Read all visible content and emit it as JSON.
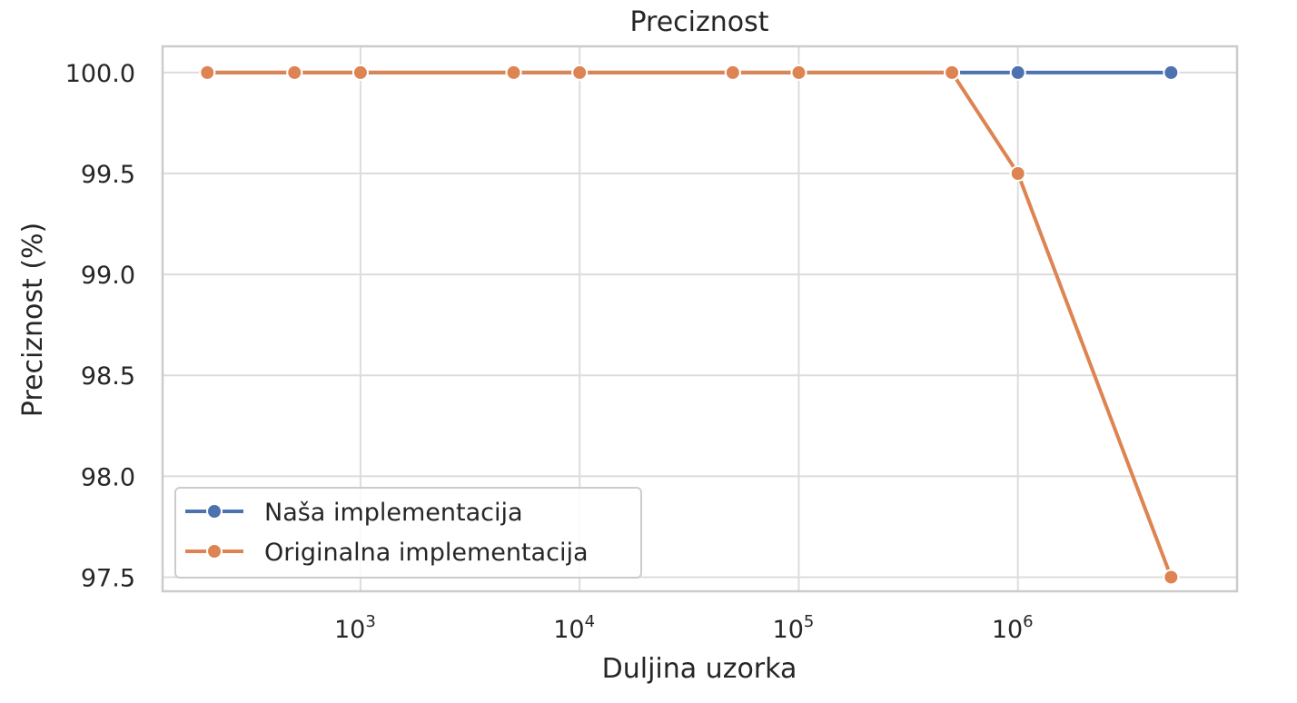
{
  "chart_data": {
    "type": "line",
    "title": "Preciznost",
    "xlabel": "Duljina uzorka",
    "ylabel": "Preciznost (%)",
    "x_scale": "log",
    "xlim": [
      125,
      10000000
    ],
    "ylim": [
      97.43,
      100.13
    ],
    "x_ticks": [
      {
        "value": 1000,
        "base": "10",
        "exp": "3"
      },
      {
        "value": 10000,
        "base": "10",
        "exp": "4"
      },
      {
        "value": 100000,
        "base": "10",
        "exp": "5"
      },
      {
        "value": 1000000,
        "base": "10",
        "exp": "6"
      }
    ],
    "y_ticks": [
      {
        "value": 100.0,
        "label": "100.0"
      },
      {
        "value": 99.5,
        "label": "99.5"
      },
      {
        "value": 99.0,
        "label": "99.0"
      },
      {
        "value": 98.5,
        "label": "98.5"
      },
      {
        "value": 98.0,
        "label": "98.0"
      },
      {
        "value": 97.5,
        "label": "97.5"
      }
    ],
    "grid": true,
    "legend_position": "bottom-left",
    "series": [
      {
        "name": "Naša implementacija",
        "color": "#4c72b0",
        "x": [
          200,
          500,
          1000,
          5000,
          10000,
          50000,
          100000,
          500000,
          1000000,
          5000000
        ],
        "y": [
          100,
          100,
          100,
          100,
          100,
          100,
          100,
          100,
          100,
          100
        ]
      },
      {
        "name": "Originalna implementacija",
        "color": "#dd8452",
        "x": [
          200,
          500,
          1000,
          5000,
          10000,
          50000,
          100000,
          500000,
          1000000,
          5000000
        ],
        "y": [
          100,
          100,
          100,
          100,
          100,
          100,
          100,
          100,
          99.5,
          97.5
        ]
      }
    ]
  }
}
